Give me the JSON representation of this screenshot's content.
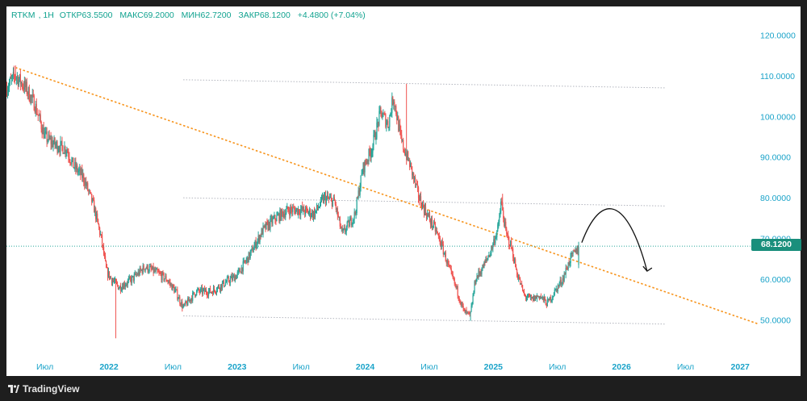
{
  "legend": {
    "symbol": "RTKM",
    "interval": "1Н",
    "open_label": "ОТКР",
    "open": "63.5500",
    "high_label": "МАКС",
    "high": "69.2000",
    "low_label": "МИН",
    "low": "62.7200",
    "close_label": "ЗАКР",
    "close": "68.1200",
    "change": "+4.4800 (+7.04%)"
  },
  "price_tag": "68.1200",
  "brand": "TradingView",
  "colors": {
    "up": "#26a69a",
    "down": "#ef5350",
    "trendline": "#f7931a",
    "channel": "#b2b5be",
    "price_line": "#26a69a",
    "axis_text": "#1aa3c9"
  },
  "chart_data": {
    "type": "candlestick",
    "y_axis": {
      "ticks": [
        50,
        60,
        70,
        80,
        90,
        100,
        110,
        120
      ],
      "tick_labels": [
        "50.0000",
        "60.0000",
        "70.0000",
        "80.0000",
        "90.0000",
        "100.0000",
        "110.0000",
        "120.0000"
      ],
      "range": [
        41,
        127
      ]
    },
    "x_axis": {
      "tick_labels": [
        "Июл",
        "2022",
        "Июл",
        "2023",
        "Июл",
        "2024",
        "Июл",
        "2025",
        "Июл",
        "2026",
        "Июл",
        "2027"
      ],
      "tick_times": [
        2021.5,
        2022.0,
        2022.5,
        2023.0,
        2023.5,
        2024.0,
        2024.5,
        2025.0,
        2025.5,
        2026.0,
        2026.5,
        2027.0
      ],
      "range": [
        2021.2,
        2027.07
      ]
    },
    "last_price": 68.12,
    "price_path": [
      [
        2021.2,
        107
      ],
      [
        2021.27,
        110
      ],
      [
        2021.35,
        107
      ],
      [
        2021.42,
        103
      ],
      [
        2021.5,
        95
      ],
      [
        2021.58,
        93
      ],
      [
        2021.67,
        92
      ],
      [
        2021.72,
        88
      ],
      [
        2021.8,
        85
      ],
      [
        2021.88,
        78
      ],
      [
        2021.94,
        70
      ],
      [
        2021.98,
        62
      ],
      [
        2022.02,
        60
      ],
      [
        2022.08,
        58
      ],
      [
        2022.18,
        60
      ],
      [
        2022.28,
        63
      ],
      [
        2022.35,
        62
      ],
      [
        2022.45,
        60
      ],
      [
        2022.52,
        57
      ],
      [
        2022.58,
        53
      ],
      [
        2022.68,
        57
      ],
      [
        2022.8,
        57
      ],
      [
        2022.9,
        59
      ],
      [
        2023.0,
        61
      ],
      [
        2023.1,
        66
      ],
      [
        2023.2,
        72
      ],
      [
        2023.3,
        75
      ],
      [
        2023.4,
        77
      ],
      [
        2023.5,
        77
      ],
      [
        2023.6,
        76
      ],
      [
        2023.68,
        80
      ],
      [
        2023.76,
        79
      ],
      [
        2023.82,
        71
      ],
      [
        2023.86,
        73
      ],
      [
        2023.92,
        76
      ],
      [
        2023.98,
        87
      ],
      [
        2024.05,
        92
      ],
      [
        2024.12,
        101
      ],
      [
        2024.18,
        98
      ],
      [
        2024.22,
        105
      ],
      [
        2024.28,
        94
      ],
      [
        2024.35,
        88
      ],
      [
        2024.42,
        80
      ],
      [
        2024.48,
        76
      ],
      [
        2024.55,
        72
      ],
      [
        2024.6,
        68
      ],
      [
        2024.66,
        62
      ],
      [
        2024.72,
        57
      ],
      [
        2024.77,
        52
      ],
      [
        2024.82,
        51
      ],
      [
        2024.86,
        60
      ],
      [
        2024.92,
        63
      ],
      [
        2024.98,
        67
      ],
      [
        2025.04,
        73
      ],
      [
        2025.06,
        79
      ],
      [
        2025.1,
        71
      ],
      [
        2025.14,
        68
      ],
      [
        2025.18,
        62
      ],
      [
        2025.24,
        56
      ],
      [
        2025.3,
        55
      ],
      [
        2025.36,
        56
      ],
      [
        2025.42,
        54
      ],
      [
        2025.48,
        57
      ],
      [
        2025.54,
        60
      ],
      [
        2025.6,
        65
      ],
      [
        2025.67,
        68.12
      ]
    ],
    "wicks": [
      {
        "t": 2021.27,
        "high": 112.5
      },
      {
        "t": 2022.05,
        "low": 45.5
      },
      {
        "t": 2024.32,
        "high": 108
      },
      {
        "t": 2024.82,
        "low": 49.8
      },
      {
        "t": 2025.07,
        "high": 81
      }
    ],
    "trendline": {
      "from": [
        2021.27,
        112
      ],
      "to": [
        2027.07,
        49
      ]
    },
    "channel_lines": [
      {
        "from": [
          2022.58,
          109
        ],
        "to": [
          2026.34,
          107
        ]
      },
      {
        "from": [
          2022.58,
          80
        ],
        "to": [
          2026.34,
          78
        ]
      },
      {
        "from": [
          2022.58,
          51
        ],
        "to": [
          2026.34,
          49
        ]
      }
    ],
    "projection_arc": {
      "from": [
        2025.69,
        69
      ],
      "peak": [
        2025.93,
        77.5
      ],
      "to": [
        2026.2,
        62
      ]
    }
  }
}
